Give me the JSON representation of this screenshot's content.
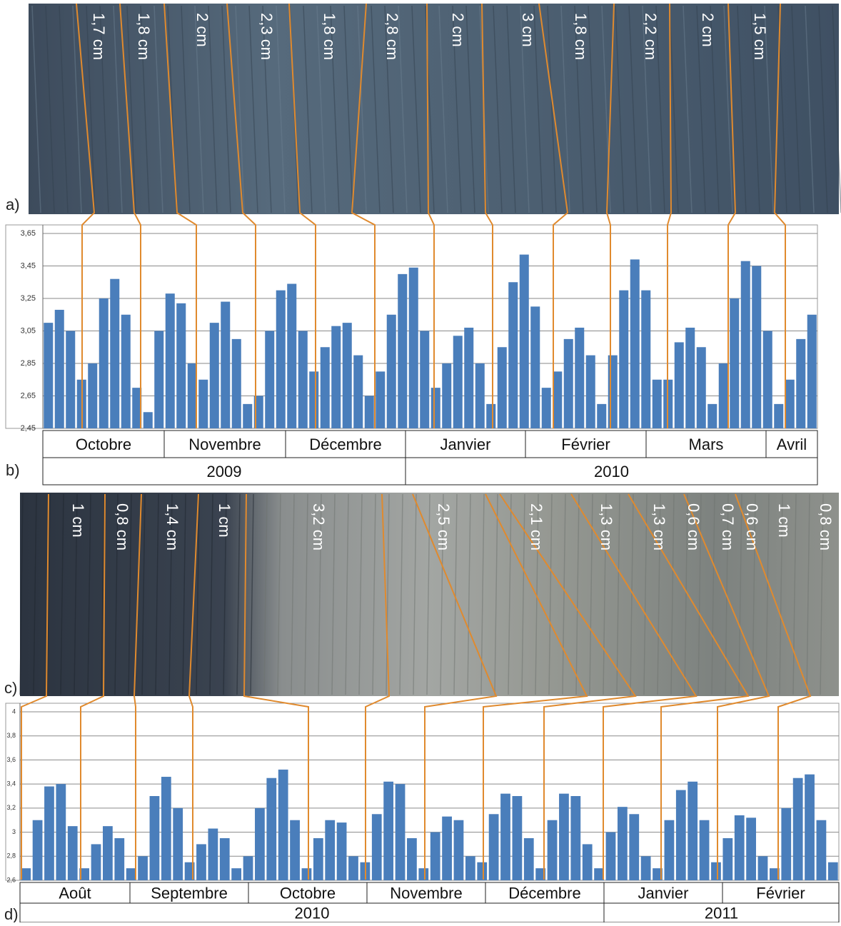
{
  "panel_labels": [
    "a)",
    "b)",
    "c)",
    "d)"
  ],
  "photos": [
    {
      "layers": [
        "1,7 cm",
        "1,8 cm",
        "2 cm",
        "2,3 cm",
        "1,8 cm",
        "2,8 cm",
        "2 cm",
        "3 cm",
        "1,8 cm",
        "2,2 cm",
        "2 cm",
        "1,5 cm"
      ]
    },
    {
      "layers": [
        "1 cm",
        "0,8 cm",
        "1,4 cm",
        "1 cm",
        "3,2 cm",
        "2,5 cm",
        "2,1 cm",
        "1,3 cm",
        "1,3 cm",
        "0,6 cm",
        "0,7 cm",
        "0,6 cm",
        "1 cm",
        "0,8 cm"
      ]
    }
  ],
  "chart_data": [
    {
      "type": "bar",
      "color": "#4a7ebb",
      "grid": true,
      "ylim": [
        2.45,
        3.65
      ],
      "yticks": [
        {
          "value": 2.45,
          "label": "2,45"
        },
        {
          "value": 2.65,
          "label": "2,65"
        },
        {
          "value": 2.85,
          "label": "2,85"
        },
        {
          "value": 3.05,
          "label": "3,05"
        },
        {
          "value": 3.25,
          "label": "3,25"
        },
        {
          "value": 3.45,
          "label": "3,45"
        },
        {
          "value": 3.65,
          "label": "3,65"
        }
      ],
      "months": [
        "Octobre",
        "Novembre",
        "Décembre",
        "Janvier",
        "Février",
        "Mars",
        "Avril"
      ],
      "years": [
        "2009",
        "2010"
      ],
      "values": [
        3.1,
        3.18,
        3.05,
        2.75,
        2.85,
        3.25,
        3.37,
        3.15,
        2.7,
        2.55,
        3.05,
        3.28,
        3.22,
        2.85,
        2.75,
        3.1,
        3.23,
        3.0,
        2.6,
        2.65,
        3.05,
        3.3,
        3.34,
        3.05,
        2.8,
        2.95,
        3.08,
        3.1,
        2.9,
        2.65,
        2.8,
        3.15,
        3.4,
        3.44,
        3.05,
        2.7,
        2.85,
        3.02,
        3.07,
        2.85,
        2.6,
        2.95,
        3.35,
        3.52,
        3.2,
        2.7,
        2.8,
        3.0,
        3.07,
        2.9,
        2.6,
        2.9,
        3.3,
        3.49,
        3.3,
        2.75,
        2.75,
        2.98,
        3.07,
        2.95,
        2.6,
        2.85,
        3.25,
        3.48,
        3.45,
        3.05,
        2.6,
        2.75,
        3.0,
        3.15
      ]
    },
    {
      "type": "bar",
      "color": "#4a7ebb",
      "grid": true,
      "ylim": [
        2.6,
        4
      ],
      "yticks": [
        {
          "value": 2.6,
          "label": "2,6"
        },
        {
          "value": 2.8,
          "label": "2,8"
        },
        3,
        {
          "value": 3.2,
          "label": "3,2"
        },
        {
          "value": 3.4,
          "label": "3,4"
        },
        {
          "value": 3.6,
          "label": "3,6"
        },
        {
          "value": 3.8,
          "label": "3,8"
        },
        4
      ],
      "months": [
        "Août",
        "Septembre",
        "Octobre",
        "Novembre",
        "Décembre",
        "Janvier",
        "Février"
      ],
      "years": [
        "2010",
        "2011"
      ],
      "values": [
        2.7,
        3.1,
        3.38,
        3.4,
        3.05,
        2.7,
        2.9,
        3.05,
        2.95,
        2.7,
        2.8,
        3.3,
        3.46,
        3.2,
        2.75,
        2.9,
        3.03,
        2.95,
        2.7,
        2.8,
        3.2,
        3.45,
        3.52,
        3.1,
        2.7,
        2.95,
        3.1,
        3.08,
        2.8,
        2.75,
        3.15,
        3.42,
        3.4,
        2.95,
        2.7,
        3.0,
        3.13,
        3.1,
        2.8,
        2.75,
        3.15,
        3.32,
        3.3,
        2.95,
        2.7,
        3.1,
        3.32,
        3.3,
        2.9,
        2.7,
        3.0,
        3.21,
        3.15,
        2.8,
        2.7,
        3.1,
        3.35,
        3.42,
        3.1,
        2.75,
        2.95,
        3.14,
        3.12,
        2.8,
        2.7,
        3.2,
        3.45,
        3.48,
        3.1,
        2.75
      ]
    }
  ]
}
